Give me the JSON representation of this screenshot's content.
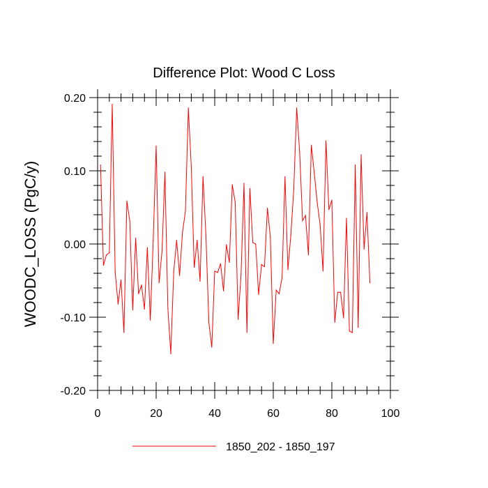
{
  "chart_data": {
    "type": "line",
    "title": "Difference Plot: Wood C Loss",
    "xlabel": "",
    "ylabel": "WOODC_LOSS  (PgC/y)",
    "xlim": [
      0,
      100
    ],
    "ylim": [
      -0.2,
      0.2
    ],
    "x_ticks": [
      0,
      20,
      40,
      60,
      80,
      100
    ],
    "x_tick_labels": [
      "0",
      "20",
      "40",
      "60",
      "80",
      "100"
    ],
    "y_ticks": [
      -0.2,
      -0.1,
      0.0,
      0.1,
      0.2
    ],
    "y_tick_labels": [
      "-0.20",
      "-0.10",
      "0.00",
      "0.10",
      "0.20"
    ],
    "legend_position": "bottom",
    "series": [
      {
        "name": "1850_202 - 1850_197",
        "color": "#ff0000",
        "x": [
          1,
          2,
          3,
          4,
          5,
          6,
          7,
          8,
          9,
          10,
          11,
          12,
          13,
          14,
          15,
          16,
          17,
          18,
          19,
          20,
          21,
          22,
          23,
          24,
          25,
          26,
          27,
          28,
          29,
          30,
          31,
          32,
          33,
          34,
          35,
          36,
          37,
          38,
          39,
          40,
          41,
          42,
          43,
          44,
          45,
          46,
          47,
          48,
          49,
          50,
          51,
          52,
          53,
          54,
          55,
          56,
          57,
          58,
          59,
          60,
          61,
          62,
          63,
          64,
          65,
          66,
          67,
          68,
          69,
          70,
          71,
          72,
          73,
          74,
          75,
          76,
          77,
          78,
          79,
          80,
          81,
          82,
          83,
          84,
          85,
          86,
          87,
          88,
          89,
          90,
          91,
          92,
          93
        ],
        "values": [
          0.108,
          -0.029,
          -0.015,
          -0.012,
          0.191,
          -0.038,
          -0.082,
          -0.049,
          -0.121,
          0.059,
          0.031,
          -0.09,
          0.008,
          -0.068,
          -0.056,
          -0.089,
          -0.005,
          -0.104,
          0.005,
          0.134,
          -0.053,
          -0.01,
          0.098,
          -0.088,
          -0.15,
          -0.038,
          0.005,
          -0.043,
          0.016,
          0.045,
          0.186,
          0.105,
          -0.032,
          0.005,
          -0.051,
          0.092,
          0.012,
          -0.107,
          -0.141,
          -0.037,
          -0.039,
          -0.027,
          -0.064,
          -0.001,
          -0.025,
          0.081,
          0.057,
          -0.103,
          -0.041,
          0.083,
          -0.121,
          0.076,
          0.002,
          0.0,
          -0.069,
          -0.028,
          -0.031,
          0.049,
          0.01,
          -0.136,
          -0.063,
          -0.068,
          -0.046,
          0.092,
          -0.035,
          0.012,
          0.075,
          0.186,
          0.126,
          0.032,
          0.039,
          -0.015,
          0.135,
          0.097,
          0.057,
          0.026,
          -0.037,
          0.141,
          0.047,
          0.06,
          -0.107,
          -0.066,
          -0.066,
          -0.101,
          0.035,
          -0.119,
          -0.121,
          0.108,
          -0.114,
          0.122,
          -0.007,
          0.043,
          -0.053
        ]
      }
    ]
  }
}
